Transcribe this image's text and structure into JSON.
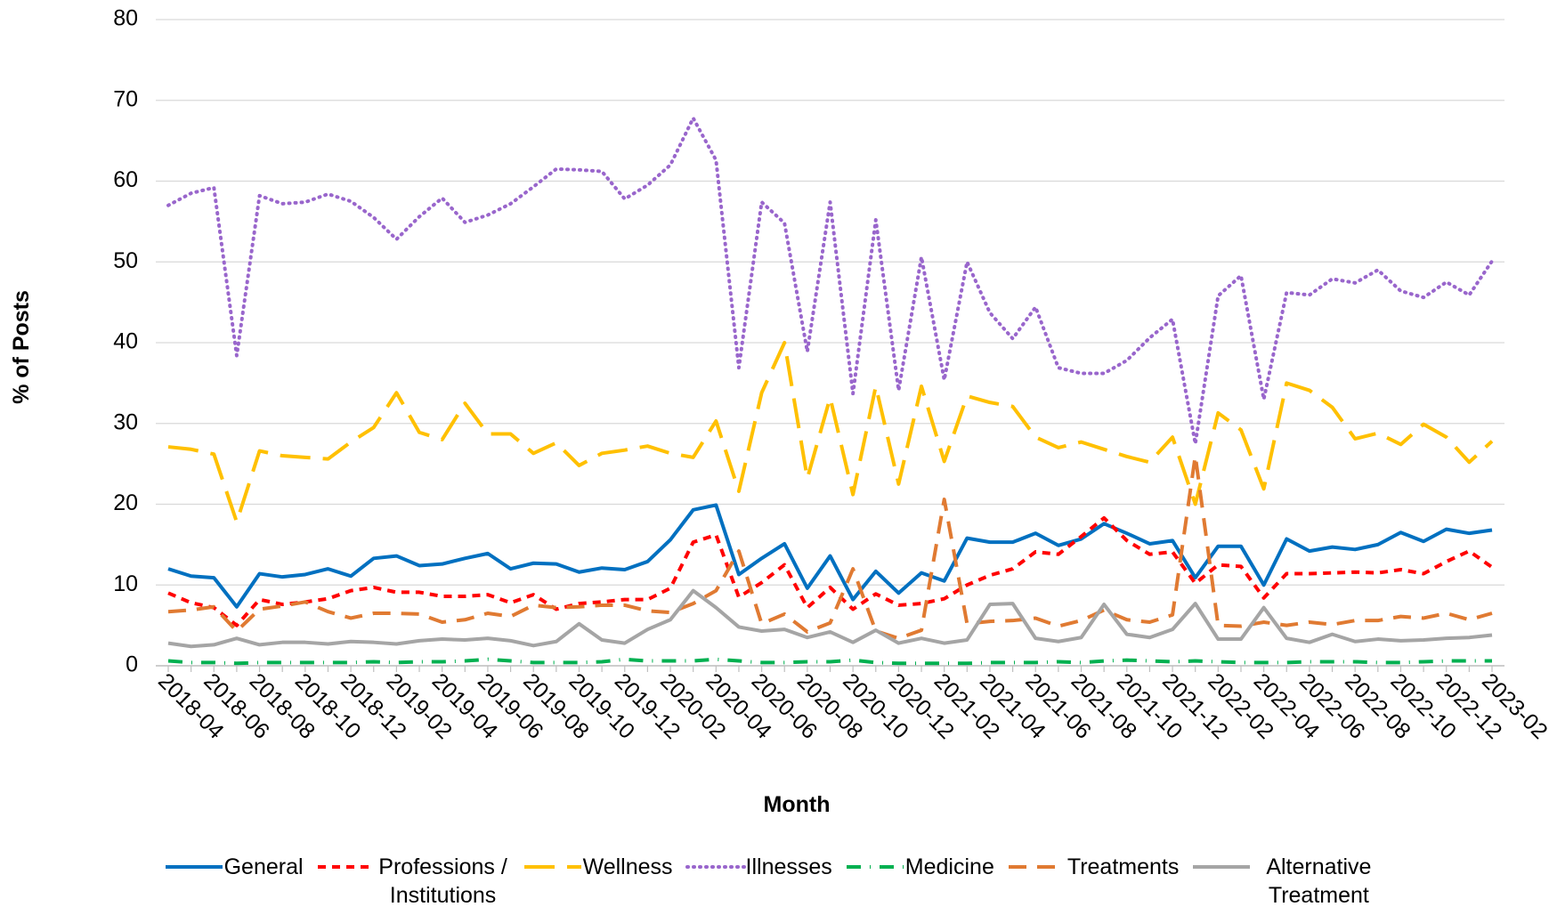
{
  "chart_data": {
    "type": "line",
    "x_label": "Month",
    "y_label": "% of Posts",
    "categories": [
      "2018-04",
      null,
      "2018-06",
      null,
      "2018-08",
      null,
      "2018-10",
      null,
      "2018-12",
      null,
      "2019-02",
      null,
      "2019-04",
      null,
      "2019-06",
      null,
      "2019-08",
      null,
      "2019-10",
      null,
      "2019-12",
      null,
      "2020-02",
      null,
      "2020-04",
      null,
      "2020-06",
      null,
      "2020-08",
      null,
      "2020-10",
      null,
      "2020-12",
      null,
      "2021-02",
      null,
      "2021-04",
      null,
      "2021-06",
      null,
      "2021-08",
      null,
      "2021-10",
      null,
      "2021-12",
      null,
      "2022-02",
      null,
      "2022-04",
      null,
      "2022-06",
      null,
      "2022-08",
      null,
      "2022-10",
      null,
      "2022-12",
      null,
      "2023-02"
    ],
    "ylim": [
      0,
      80
    ],
    "yticks": [
      0,
      10,
      20,
      30,
      40,
      50,
      60,
      70,
      80
    ],
    "grid": true,
    "series": [
      {
        "name": "General",
        "color": "#0070c0",
        "dash": "solid",
        "values": [
          12.0,
          11.1,
          10.9,
          7.3,
          11.4,
          11.0,
          11.3,
          12.0,
          11.1,
          13.3,
          13.6,
          12.4,
          12.6,
          13.3,
          13.9,
          12.0,
          12.7,
          12.6,
          11.6,
          12.1,
          11.9,
          12.9,
          15.6,
          19.3,
          19.9,
          11.3,
          13.3,
          15.1,
          9.6,
          13.6,
          8.2,
          11.7,
          9.0,
          11.5,
          10.5,
          15.8,
          15.3,
          15.3,
          16.4,
          14.9,
          15.7,
          17.6,
          16.4,
          15.1,
          15.5,
          10.9,
          14.8,
          14.8,
          10.0,
          15.7,
          14.2,
          14.7,
          14.4,
          15.0,
          16.5,
          15.4,
          16.9,
          16.4,
          16.8
        ]
      },
      {
        "name": "Professions / Institutions",
        "color": "#ff0000",
        "dash": "dash",
        "values": [
          9.0,
          7.8,
          7.2,
          5.0,
          8.2,
          7.6,
          7.9,
          8.3,
          9.3,
          9.7,
          9.1,
          9.1,
          8.6,
          8.6,
          8.8,
          7.8,
          8.8,
          7.0,
          7.7,
          7.9,
          8.2,
          8.2,
          9.6,
          15.3,
          16.2,
          8.5,
          10.3,
          12.5,
          7.2,
          9.7,
          7.0,
          8.9,
          7.5,
          7.7,
          8.3,
          10.0,
          11.2,
          12.0,
          14.1,
          13.8,
          16.0,
          18.3,
          15.5,
          13.8,
          14.1,
          10.2,
          12.5,
          12.3,
          8.4,
          11.4,
          11.4,
          11.5,
          11.6,
          11.5,
          11.9,
          11.4,
          12.9,
          14.2,
          12.2
        ]
      },
      {
        "name": "Wellness",
        "color": "#ffc000",
        "dash": "longdash",
        "values": [
          27.1,
          26.8,
          26.2,
          17.8,
          26.6,
          26.0,
          25.8,
          25.6,
          27.7,
          29.5,
          33.8,
          28.9,
          28.0,
          32.5,
          28.7,
          28.7,
          26.3,
          27.6,
          24.8,
          26.3,
          26.7,
          27.2,
          26.3,
          25.8,
          30.3,
          21.6,
          33.8,
          40.0,
          23.2,
          33.2,
          21.2,
          34.6,
          22.5,
          34.6,
          25.3,
          33.4,
          32.6,
          32.1,
          28.3,
          27.0,
          27.7,
          26.8,
          25.9,
          25.2,
          28.3,
          20.0,
          31.3,
          29.2,
          21.9,
          35.0,
          34.1,
          32.0,
          28.1,
          28.8,
          27.4,
          29.9,
          28.3,
          25.2,
          27.8
        ]
      },
      {
        "name": "Illnesses",
        "color": "#9966cc",
        "dash": "dot",
        "values": [
          57.0,
          58.5,
          59.2,
          38.4,
          58.2,
          57.2,
          57.4,
          58.4,
          57.5,
          55.5,
          52.8,
          55.6,
          57.9,
          54.9,
          55.8,
          57.2,
          59.3,
          61.5,
          61.4,
          61.2,
          57.8,
          59.5,
          62.0,
          67.8,
          62.6,
          36.9,
          57.4,
          54.8,
          38.9,
          57.4,
          33.7,
          55.2,
          34.1,
          50.6,
          35.4,
          50.0,
          43.7,
          40.5,
          44.4,
          36.9,
          36.2,
          36.2,
          37.8,
          40.6,
          42.9,
          27.5,
          45.8,
          48.3,
          33.0,
          46.2,
          45.9,
          47.9,
          47.4,
          49.0,
          46.4,
          45.6,
          47.5,
          45.9,
          50.1
        ]
      },
      {
        "name": "Medicine",
        "color": "#00b050",
        "dash": "dashdot",
        "values": [
          0.6,
          0.4,
          0.4,
          0.3,
          0.4,
          0.4,
          0.4,
          0.4,
          0.4,
          0.5,
          0.4,
          0.5,
          0.5,
          0.6,
          0.8,
          0.6,
          0.4,
          0.4,
          0.4,
          0.5,
          0.8,
          0.6,
          0.6,
          0.6,
          0.8,
          0.6,
          0.4,
          0.4,
          0.5,
          0.5,
          0.7,
          0.4,
          0.3,
          0.3,
          0.3,
          0.3,
          0.4,
          0.4,
          0.4,
          0.5,
          0.4,
          0.6,
          0.7,
          0.6,
          0.5,
          0.6,
          0.5,
          0.4,
          0.4,
          0.4,
          0.5,
          0.5,
          0.5,
          0.4,
          0.4,
          0.5,
          0.6,
          0.6,
          0.6
        ]
      },
      {
        "name": "Treatments",
        "color": "#e07a32",
        "dash": "mediumdash",
        "values": [
          6.7,
          6.9,
          7.3,
          4.3,
          7.0,
          7.4,
          7.9,
          6.7,
          5.9,
          6.5,
          6.5,
          6.4,
          5.4,
          5.7,
          6.5,
          6.1,
          7.5,
          7.2,
          7.3,
          7.5,
          7.5,
          6.8,
          6.6,
          7.7,
          9.3,
          14.2,
          5.2,
          6.4,
          4.2,
          5.3,
          12.0,
          4.3,
          3.4,
          4.4,
          20.6,
          5.2,
          5.5,
          5.6,
          5.9,
          4.9,
          5.6,
          6.9,
          5.7,
          5.4,
          6.3,
          26.0,
          5.0,
          4.9,
          5.4,
          5.0,
          5.4,
          5.1,
          5.6,
          5.6,
          6.1,
          5.9,
          6.5,
          5.7,
          6.5
        ]
      },
      {
        "name": "Alternative Treatment",
        "color": "#a5a5a5",
        "dash": "solid",
        "values": [
          2.8,
          2.4,
          2.6,
          3.4,
          2.6,
          2.9,
          2.9,
          2.7,
          3.0,
          2.9,
          2.7,
          3.1,
          3.3,
          3.2,
          3.4,
          3.1,
          2.5,
          3.0,
          5.2,
          3.2,
          2.8,
          4.5,
          5.7,
          9.3,
          7.2,
          4.8,
          4.3,
          4.5,
          3.5,
          4.2,
          2.9,
          4.4,
          2.8,
          3.4,
          2.8,
          3.2,
          7.6,
          7.7,
          3.4,
          3.0,
          3.5,
          7.6,
          3.9,
          3.5,
          4.5,
          7.7,
          3.3,
          3.3,
          7.2,
          3.4,
          2.9,
          3.9,
          3.0,
          3.3,
          3.1,
          3.2,
          3.4,
          3.5,
          3.8
        ]
      }
    ]
  }
}
